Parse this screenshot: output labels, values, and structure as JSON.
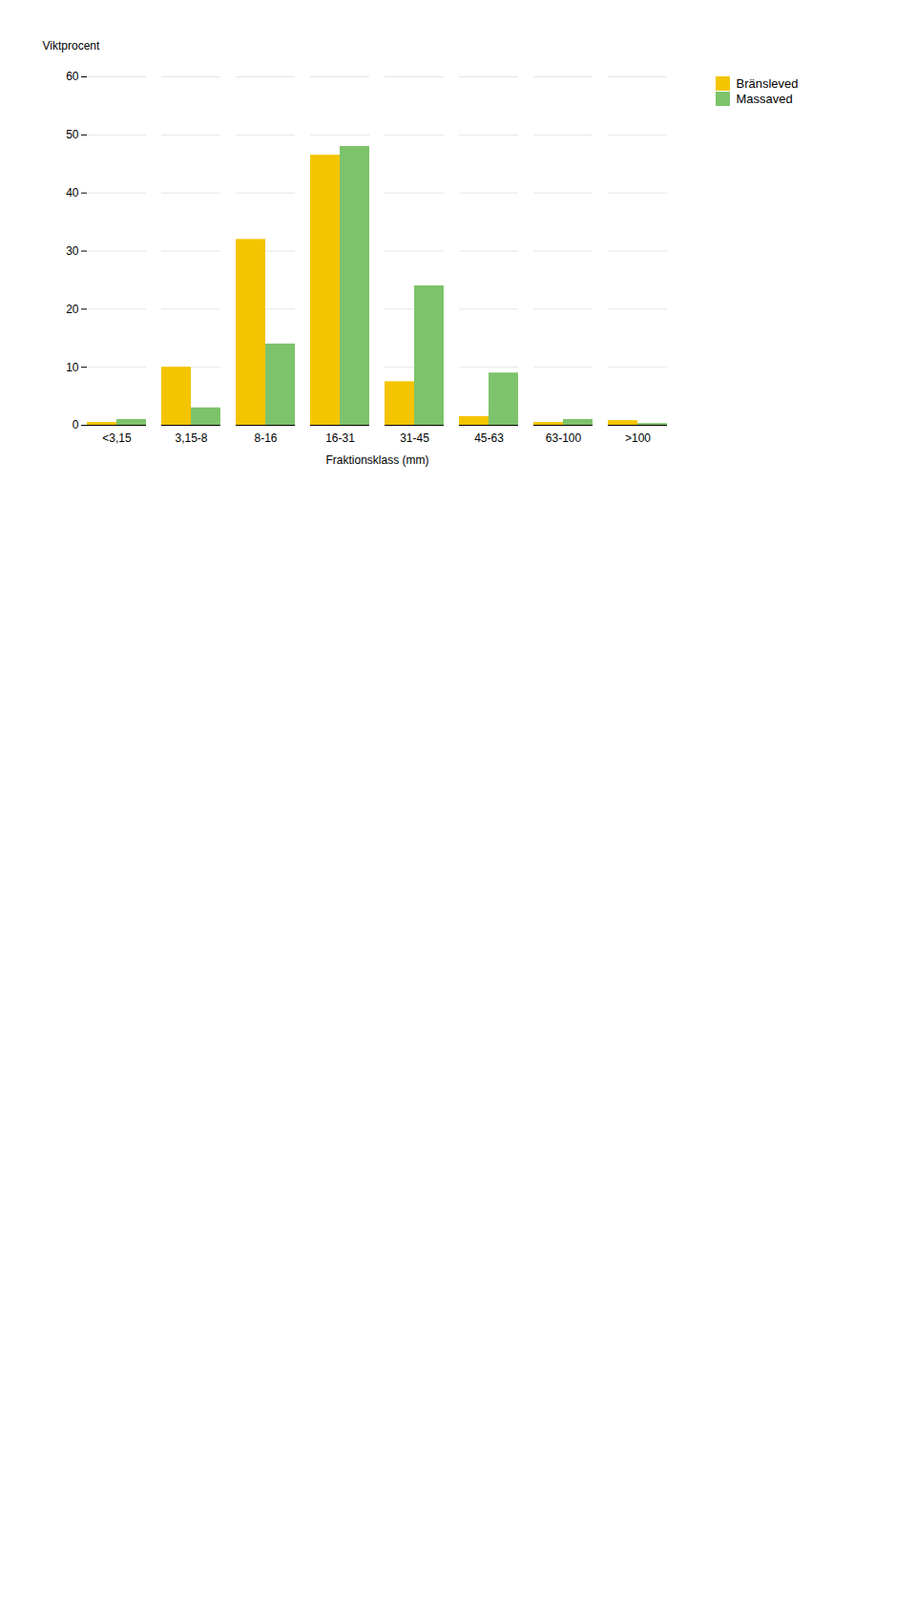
{
  "chart_data": {
    "type": "bar",
    "categories": [
      "<3,15",
      "3,15-8",
      "8-16",
      "16-31",
      "31-45",
      "45-63",
      "63-100",
      ">100"
    ],
    "series": [
      {
        "name": "Bränsleved",
        "color": "#F5C400",
        "values": [
          0.5,
          10,
          32,
          46.5,
          7.5,
          1.5,
          0.5,
          0.8
        ]
      },
      {
        "name": "Massaved",
        "color": "#7DC36B",
        "values": [
          1,
          3,
          14,
          48,
          24,
          9,
          1,
          0.3
        ]
      }
    ],
    "ylabel": "Viktprocent",
    "xlabel": "Fraktionsklass (mm)",
    "ylim": [
      0,
      60
    ],
    "yticks": [
      0,
      10,
      20,
      30,
      40,
      50,
      60
    ],
    "grid": true,
    "legend": "right"
  }
}
